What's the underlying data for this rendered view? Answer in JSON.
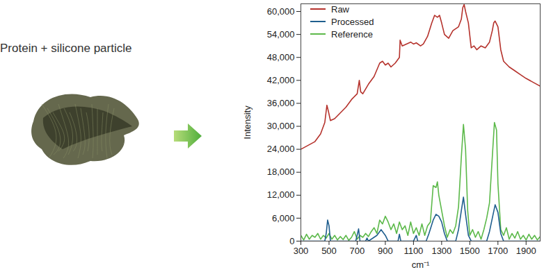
{
  "chart_data": {
    "type": "line",
    "annotations": [
      "Protein + silicone particle"
    ],
    "xlabel": "cm⁻¹",
    "ylabel": "Intensity",
    "xlim": [
      300,
      2000
    ],
    "xticks": [
      300,
      500,
      700,
      900,
      1100,
      1300,
      1500,
      1700,
      1900
    ],
    "ylim": [
      0,
      62000
    ],
    "yticks": [
      0,
      {
        "value": 6000,
        "label": "6,000"
      },
      {
        "value": 12000,
        "label": "12,000"
      },
      {
        "value": 18000,
        "label": "18,000"
      },
      {
        "value": 24000,
        "label": "24,000"
      },
      {
        "value": 30000,
        "label": "30,000"
      },
      {
        "value": 36000,
        "label": "36,000"
      },
      {
        "value": 42000,
        "label": "42,000"
      },
      {
        "value": 48000,
        "label": "48,000"
      },
      {
        "value": 54000,
        "label": "54,000"
      },
      {
        "value": 60000,
        "label": "60,000"
      }
    ],
    "grid": false,
    "legend": "top-left",
    "series": [
      {
        "name": "Raw",
        "color": "#b5322c",
        "x": [
          300,
          350,
          400,
          440,
          470,
          485,
          495,
          510,
          540,
          580,
          620,
          660,
          700,
          715,
          725,
          740,
          780,
          820,
          860,
          880,
          900,
          920,
          940,
          970,
          1000,
          1005,
          1020,
          1050,
          1080,
          1100,
          1120,
          1150,
          1170,
          1200,
          1230,
          1250,
          1270,
          1285,
          1300,
          1320,
          1350,
          1380,
          1420,
          1440,
          1450,
          1460,
          1470,
          1490,
          1510,
          1530,
          1550,
          1580,
          1610,
          1640,
          1660,
          1670,
          1680,
          1700,
          1720,
          1740,
          1780,
          1820,
          1860,
          1900,
          1950,
          2000
        ],
        "values": [
          24000,
          25000,
          26000,
          28000,
          31000,
          35500,
          34000,
          31500,
          32000,
          33500,
          35000,
          37000,
          38500,
          42000,
          39000,
          38500,
          41000,
          43000,
          46500,
          47000,
          46000,
          46500,
          45500,
          46500,
          48000,
          52500,
          51000,
          51500,
          52000,
          51500,
          51800,
          51000,
          51500,
          53500,
          57000,
          59000,
          58500,
          59000,
          57000,
          54000,
          53000,
          55000,
          56000,
          58000,
          61000,
          61800,
          60000,
          57000,
          50500,
          51000,
          50000,
          51000,
          50500,
          52000,
          55000,
          57000,
          57500,
          56000,
          50000,
          47000,
          45500,
          44500,
          43500,
          42500,
          41500,
          40500
        ]
      },
      {
        "name": "Processed",
        "color": "#1f5e8e",
        "x": [
          300,
          470,
          480,
          490,
          500,
          510,
          690,
          710,
          720,
          760,
          770,
          780,
          840,
          870,
          900,
          920,
          990,
          1000,
          1010,
          1100,
          1120,
          1130,
          1190,
          1210,
          1240,
          1260,
          1280,
          1300,
          1320,
          1340,
          1400,
          1420,
          1440,
          1455,
          1470,
          1490,
          1510,
          1620,
          1640,
          1660,
          1680,
          1700,
          1720,
          1740,
          2000
        ],
        "values": [
          0,
          0,
          2000,
          5500,
          4000,
          0,
          0,
          3200,
          0,
          0,
          800,
          0,
          1500,
          3000,
          1500,
          0,
          0,
          1800,
          0,
          0,
          1500,
          0,
          0,
          2000,
          5500,
          7000,
          6500,
          5000,
          2000,
          0,
          0,
          3000,
          8000,
          11500,
          7000,
          1500,
          0,
          0,
          2500,
          6000,
          9500,
          7500,
          2000,
          0,
          0
        ]
      },
      {
        "name": "Reference",
        "color": "#5cb94a",
        "x": [
          300,
          320,
          340,
          360,
          380,
          400,
          420,
          440,
          460,
          480,
          500,
          520,
          540,
          560,
          580,
          600,
          620,
          640,
          660,
          680,
          700,
          720,
          740,
          760,
          780,
          800,
          820,
          840,
          860,
          880,
          900,
          920,
          940,
          960,
          980,
          1000,
          1020,
          1040,
          1060,
          1080,
          1100,
          1120,
          1140,
          1160,
          1180,
          1200,
          1220,
          1240,
          1260,
          1270,
          1280,
          1300,
          1320,
          1340,
          1360,
          1380,
          1400,
          1420,
          1440,
          1455,
          1470,
          1485,
          1500,
          1520,
          1540,
          1560,
          1580,
          1600,
          1620,
          1640,
          1660,
          1675,
          1690,
          1700,
          1720,
          1740,
          1760,
          1780,
          1800,
          1820,
          1840,
          1860,
          1880,
          1900,
          1920,
          1940,
          1960,
          1980,
          2000
        ],
        "values": [
          1500,
          300,
          1800,
          500,
          1500,
          1000,
          2000,
          500,
          1500,
          800,
          2000,
          500,
          1500,
          300,
          1200,
          400,
          1500,
          200,
          1000,
          2500,
          500,
          1500,
          1000,
          2000,
          1200,
          2500,
          3500,
          2000,
          5500,
          4500,
          6500,
          5000,
          3000,
          4500,
          2000,
          5000,
          3000,
          4000,
          1500,
          5000,
          2000,
          3500,
          1500,
          4500,
          1500,
          4000,
          5000,
          14500,
          14000,
          15500,
          12000,
          8000,
          4000,
          1000,
          3000,
          2000,
          4000,
          9000,
          22000,
          30500,
          24000,
          8000,
          1500,
          3000,
          1000,
          2500,
          500,
          3000,
          6000,
          10000,
          22000,
          31000,
          29000,
          15000,
          3000,
          1500,
          3500,
          500,
          2000,
          800,
          2500,
          500,
          1500,
          300,
          1800,
          500,
          1500,
          300,
          1200
        ]
      }
    ]
  }
}
